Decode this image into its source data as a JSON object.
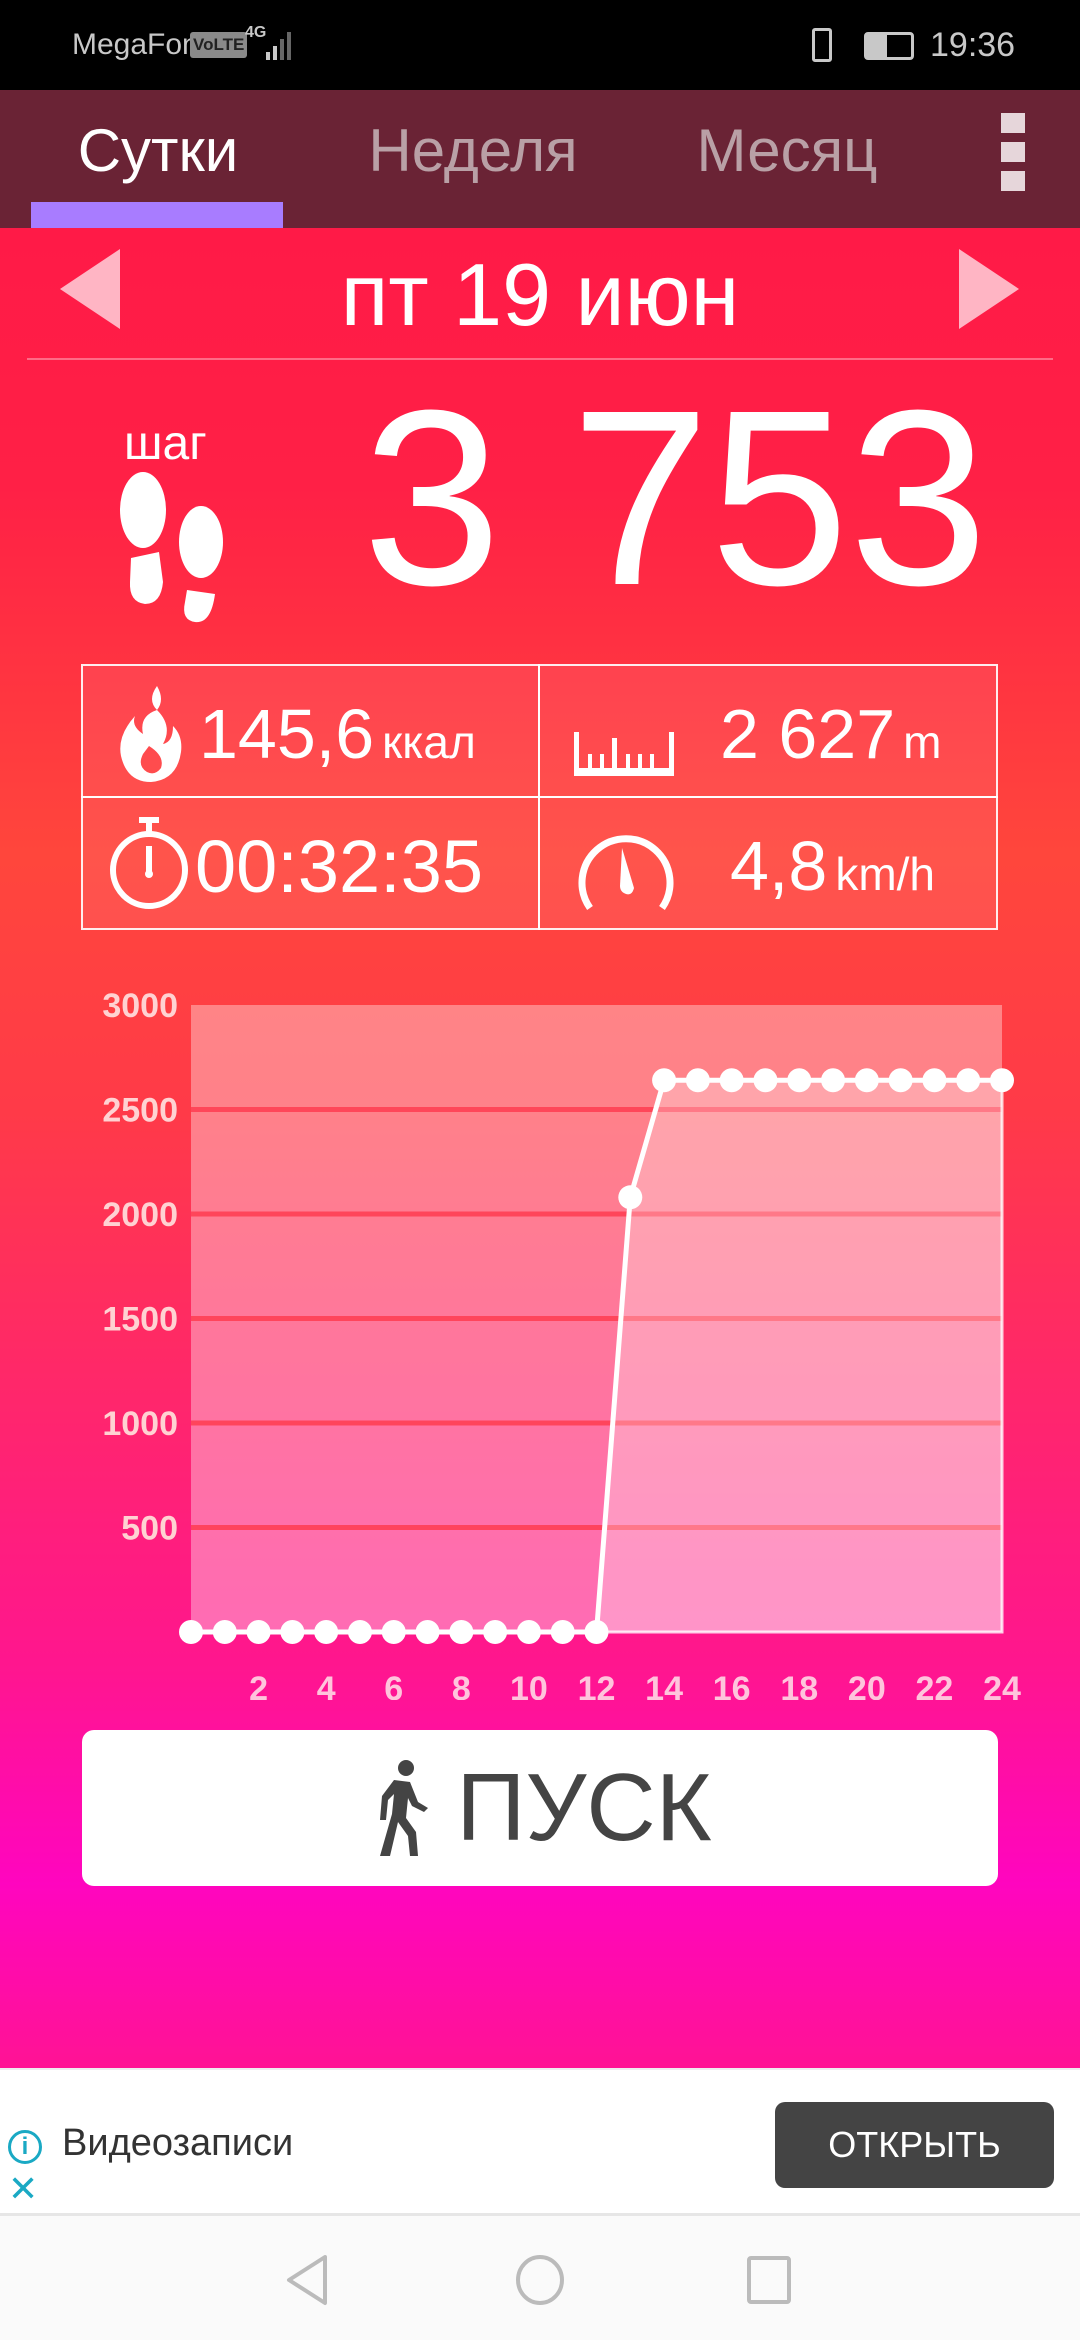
{
  "status_bar": {
    "carrier": "MegaFon",
    "volte": "VoLTE",
    "network": "4G",
    "time": "19:36"
  },
  "tabs": [
    {
      "label": "Сутки",
      "active": true
    },
    {
      "label": "Неделя",
      "active": false
    },
    {
      "label": "Месяц",
      "active": false
    }
  ],
  "colors": {
    "tab_bar": "#6a2335",
    "tab_indicator": "#a87cff",
    "ad_accent": "#1aa9c4"
  },
  "date": {
    "label": "пт 19 июн"
  },
  "steps": {
    "label": "шаг",
    "value": "3 753"
  },
  "stats": {
    "calories": {
      "value": "145,6",
      "unit": "ккал"
    },
    "distance": {
      "value": "2 627",
      "unit": "m"
    },
    "duration": {
      "value": "00:32:35"
    },
    "speed": {
      "value": "4,8",
      "unit": "km/h"
    }
  },
  "chart_data": {
    "type": "line",
    "x": [
      0,
      1,
      2,
      3,
      4,
      5,
      6,
      7,
      8,
      9,
      10,
      11,
      12,
      13,
      14,
      15,
      16,
      17,
      18,
      19,
      20,
      21,
      22,
      23,
      24
    ],
    "values": [
      0,
      0,
      0,
      0,
      0,
      0,
      0,
      0,
      0,
      0,
      0,
      0,
      0,
      2080,
      2640,
      2640,
      2640,
      2640,
      2640,
      2640,
      2640,
      2640,
      2640,
      2640,
      2640
    ],
    "xticks": [
      "2",
      "4",
      "6",
      "8",
      "10",
      "12",
      "14",
      "16",
      "18",
      "20",
      "22",
      "24"
    ],
    "yticks": [
      "500",
      "1000",
      "1500",
      "2000",
      "2500",
      "3000"
    ],
    "xlim": [
      0,
      24
    ],
    "ylim": [
      0,
      3000
    ],
    "grid": true
  },
  "start_button": {
    "label": "ПУСК"
  },
  "ad": {
    "text": "Видеозаписи",
    "button": "ОТКРЫТЬ"
  }
}
